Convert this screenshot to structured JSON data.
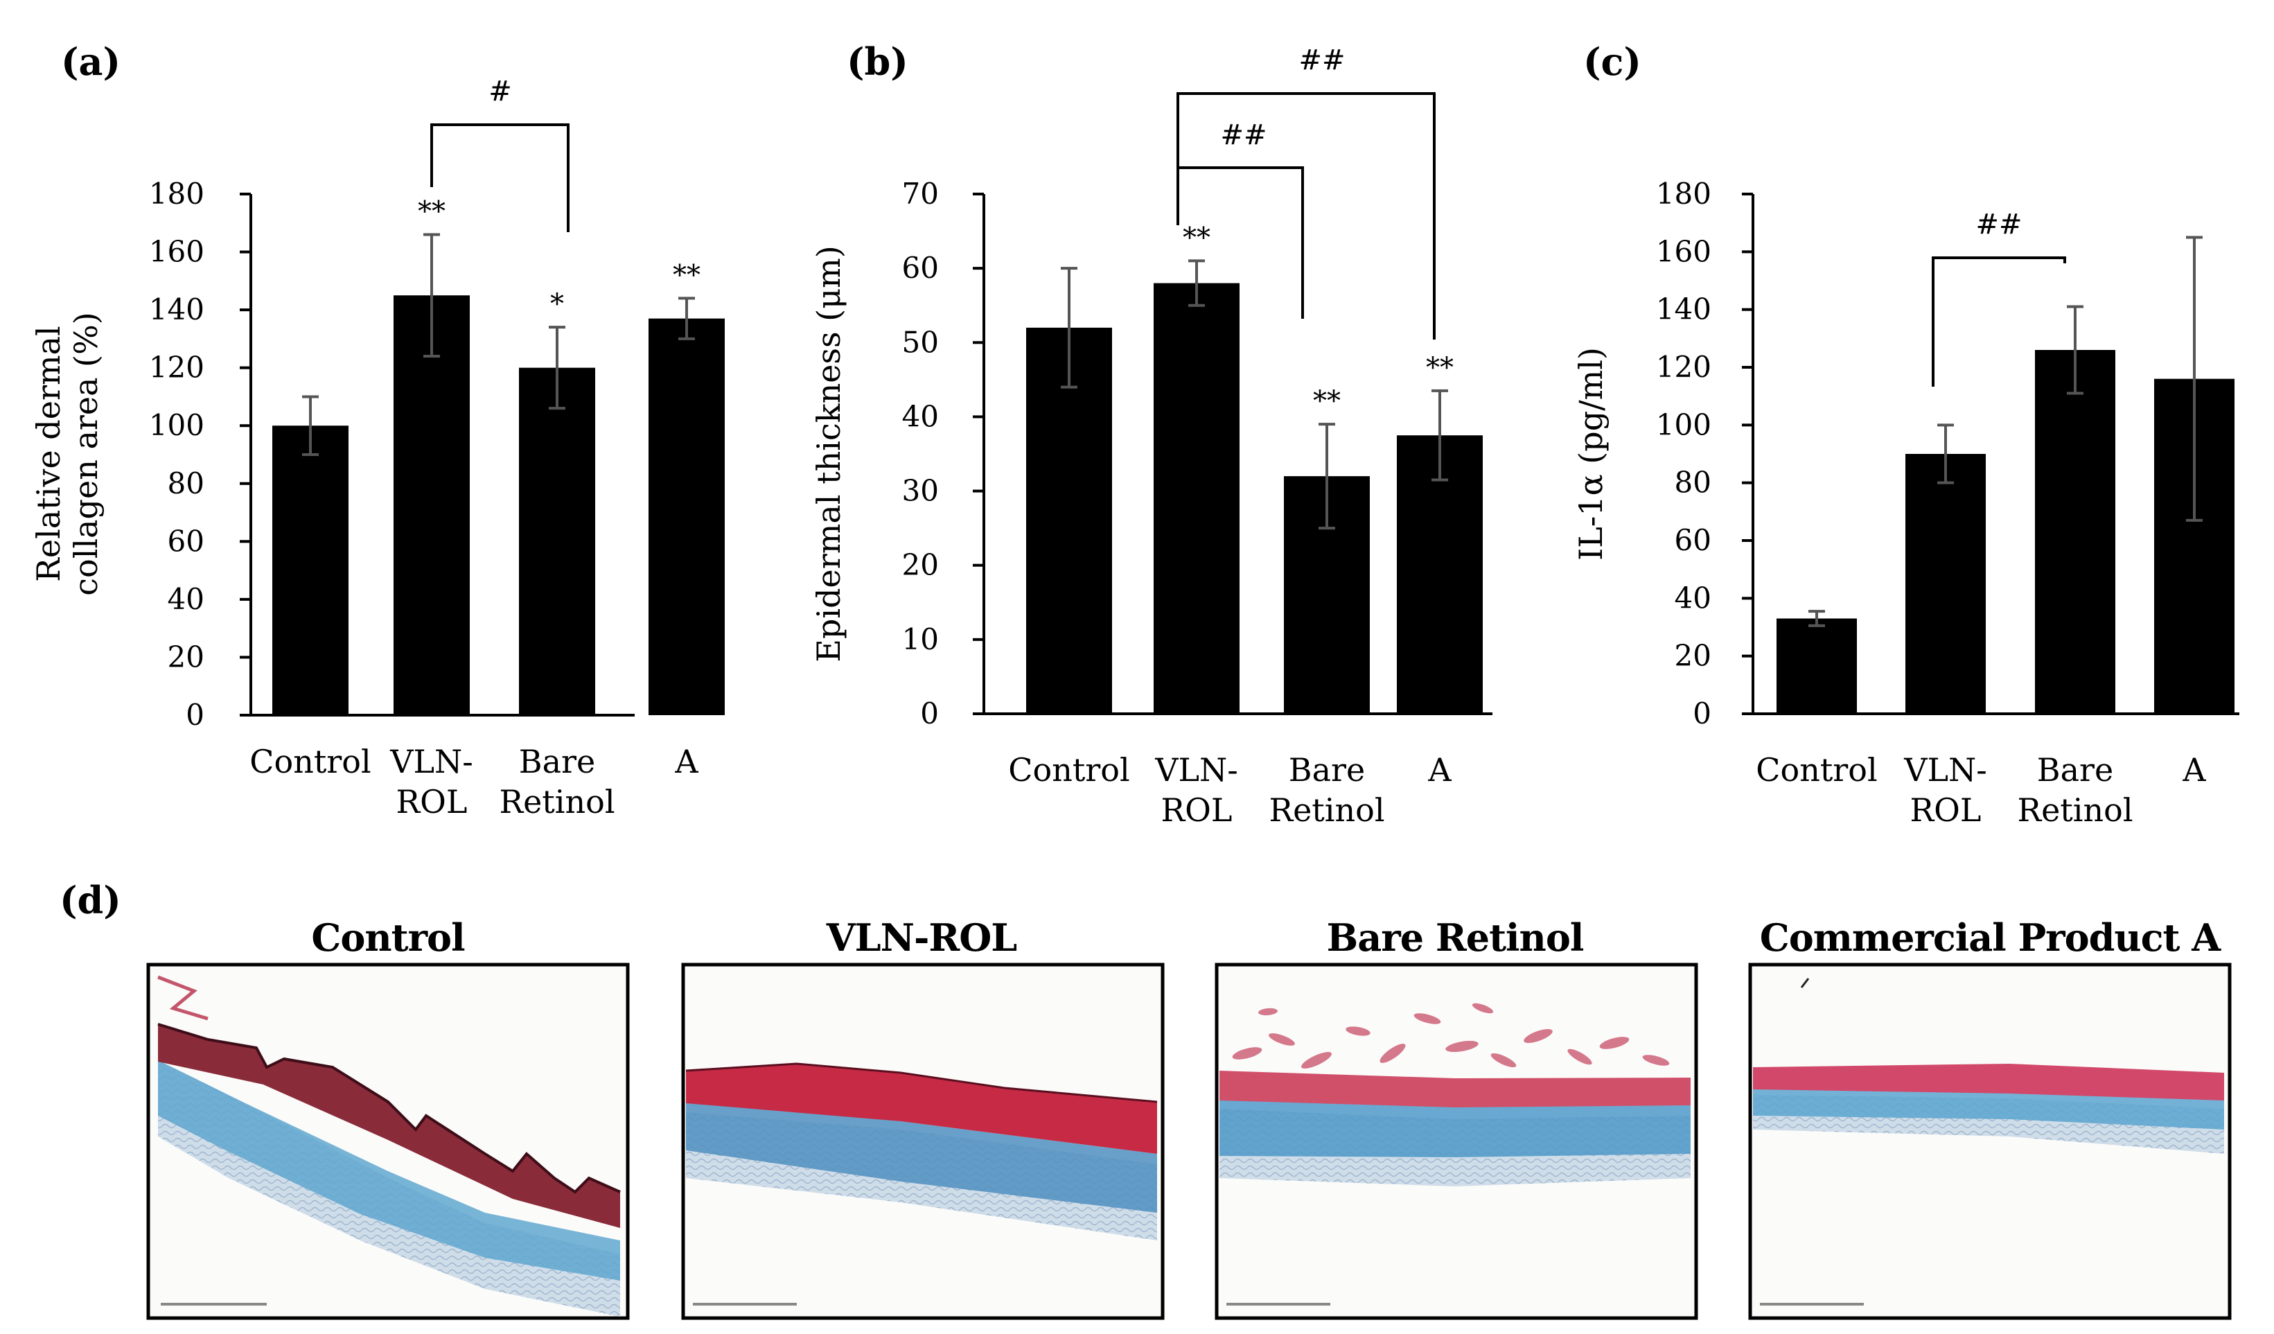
{
  "chart_data": [
    {
      "type": "bar",
      "panel_label": "(a)",
      "title": "",
      "ylabel": "Relative dermal\ncollagen area (%)",
      "xlabel": "",
      "ylim": [
        0,
        180
      ],
      "yticks": [
        0,
        20,
        40,
        60,
        80,
        100,
        120,
        140,
        160,
        180
      ],
      "categories": [
        "Control",
        "VLN-\nROL",
        "Bare\nRetinol",
        "A"
      ],
      "values": [
        100,
        145,
        120,
        137
      ],
      "errors": [
        10,
        21,
        14,
        7
      ],
      "significance": [
        "",
        "**",
        "*",
        "**"
      ],
      "brackets": [
        {
          "from": 1,
          "to": 2,
          "label": "#"
        }
      ],
      "color": "#000000"
    },
    {
      "type": "bar",
      "panel_label": "(b)",
      "title": "",
      "ylabel": "Epidermal thickness (μm)",
      "xlabel": "",
      "ylim": [
        0,
        70
      ],
      "yticks": [
        0,
        10,
        20,
        30,
        40,
        50,
        60,
        70
      ],
      "categories": [
        "Control",
        "VLN-\nROL",
        "Bare\nRetinol",
        "A"
      ],
      "values": [
        52,
        58,
        32,
        37.5
      ],
      "errors": [
        8,
        3,
        7,
        6
      ],
      "significance": [
        "",
        "**",
        "**",
        "**"
      ],
      "brackets": [
        {
          "from": 1,
          "to": 2,
          "label": "##"
        },
        {
          "from": 1,
          "to": 3,
          "label": "##"
        }
      ],
      "color": "#000000"
    },
    {
      "type": "bar",
      "panel_label": "(c)",
      "title": "",
      "ylabel": "IL-1α (pg/ml)",
      "xlabel": "",
      "ylim": [
        0,
        180
      ],
      "yticks": [
        0,
        20,
        40,
        60,
        80,
        100,
        120,
        140,
        160,
        180
      ],
      "categories": [
        "Control",
        "VLN-\nROL",
        "Bare\nRetinol",
        "A"
      ],
      "values": [
        33,
        90,
        126,
        116
      ],
      "errors": [
        2.5,
        10,
        15,
        49
      ],
      "significance": [
        "",
        "",
        "",
        ""
      ],
      "brackets": [
        {
          "from": 1,
          "to": 2,
          "label": "##"
        }
      ],
      "color": "#000000"
    }
  ],
  "histology": {
    "panel_label": "(d)",
    "images": [
      {
        "title": "Control"
      },
      {
        "title": "VLN-ROL"
      },
      {
        "title": "Bare Retinol"
      },
      {
        "title": "Commercial Product A"
      }
    ]
  }
}
